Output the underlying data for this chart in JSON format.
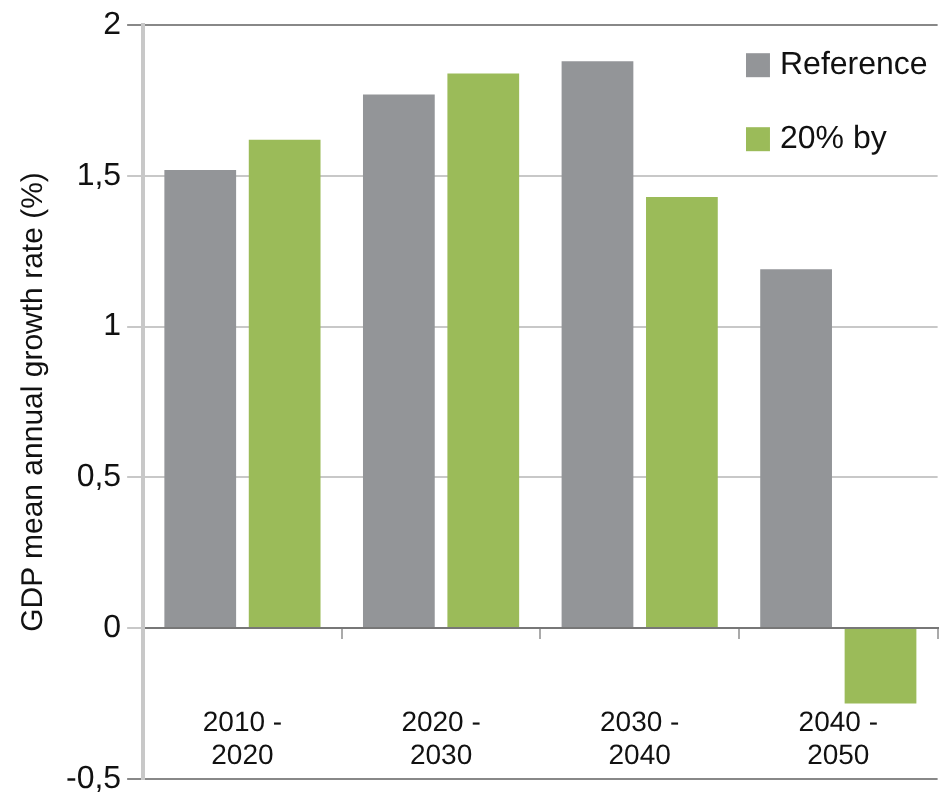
{
  "chart_data": {
    "type": "bar",
    "ylabel": "GDP mean annual growth rate (%)",
    "categories": [
      "2010 -\n2020",
      "2020 -\n2030",
      "2030 -\n2040",
      "2040 -\n2050"
    ],
    "series": [
      {
        "name": "Reference",
        "color": "#939598",
        "values": [
          1.52,
          1.77,
          1.88,
          1.19
        ]
      },
      {
        "name": "20% by",
        "color": "#9bbb59",
        "values": [
          1.62,
          1.84,
          1.43,
          -0.25
        ]
      }
    ],
    "ylim": [
      -0.5,
      2
    ],
    "yticks": [
      {
        "value": -0.5,
        "label": "-0,5"
      },
      0,
      {
        "value": 0.5,
        "label": "0,5"
      },
      1,
      {
        "value": 1.5,
        "label": "1,5"
      },
      2
    ],
    "grid": "y",
    "legend": "top right"
  }
}
